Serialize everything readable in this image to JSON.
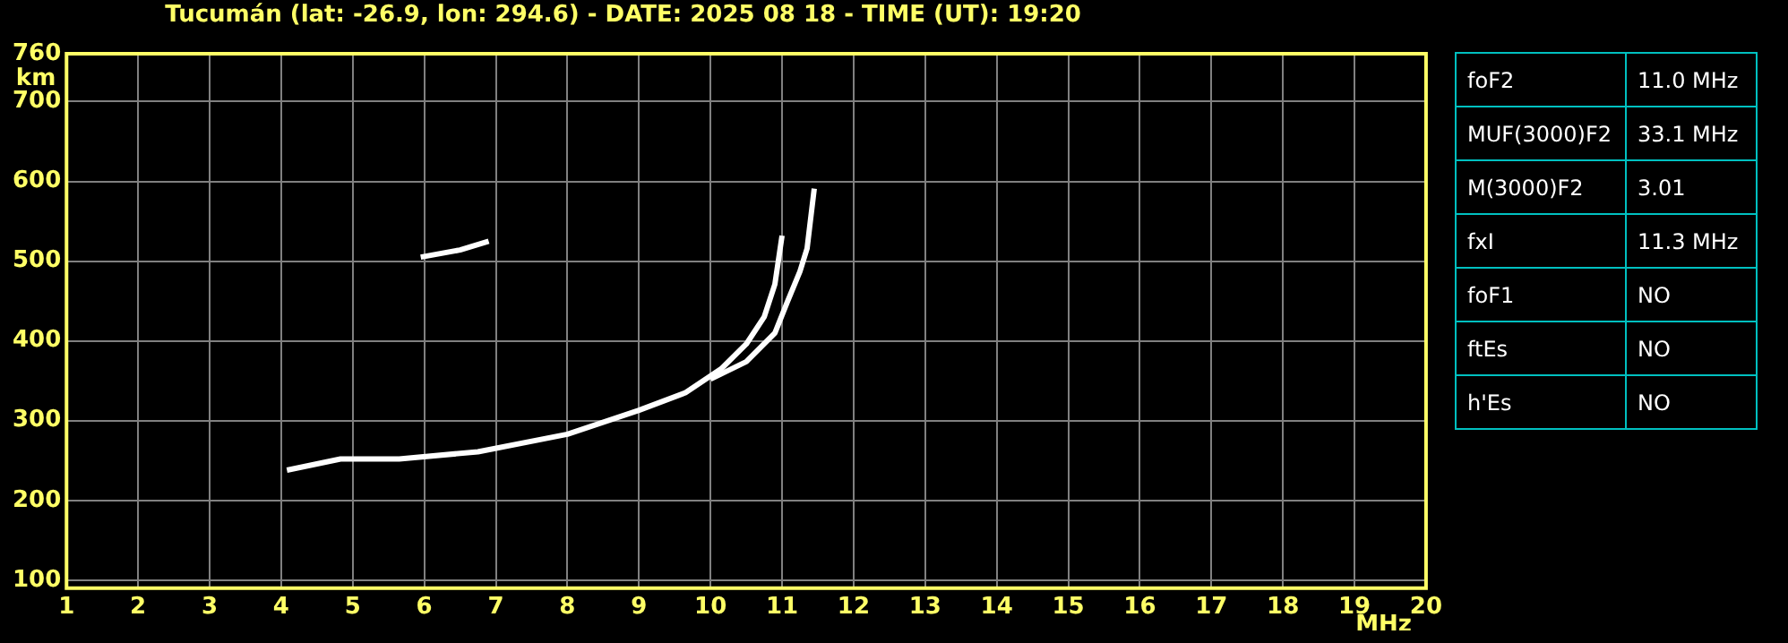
{
  "chart_data": [
    {
      "type": "line",
      "title": "Tucumán (lat: -26.9, lon: 294.6) - DATE: 2025 08 18 - TIME (UT): 19:20",
      "xlabel": "MHz",
      "ylabel": "km",
      "xlim": [
        1,
        20
      ],
      "xticks": [
        1,
        2,
        3,
        4,
        5,
        6,
        7,
        8,
        9,
        10,
        11,
        12,
        13,
        14,
        15,
        16,
        17,
        18,
        19,
        20
      ],
      "ylim": [
        90,
        760
      ],
      "yticks": [
        100,
        200,
        300,
        400,
        500,
        600,
        700,
        760
      ],
      "grid": true,
      "marker": "none",
      "line_style": "solid",
      "series": [
        {
          "color": "#ffffff",
          "x": [
            4.08,
            4.83,
            5.65,
            6.75,
            8.0,
            9.0,
            9.65,
            10.15,
            10.5,
            10.75,
            10.9,
            11.0
          ],
          "values": [
            238,
            252,
            252,
            261,
            283,
            313,
            335,
            365,
            396,
            430,
            471,
            532
          ]
        },
        {
          "color": "#ffffff",
          "x": [
            10.0,
            10.5,
            10.9,
            11.07,
            11.25,
            11.35,
            11.45
          ],
          "values": [
            352,
            374,
            410,
            448,
            487,
            516,
            591
          ]
        },
        {
          "color": "#ffffff",
          "x": [
            5.95,
            6.5,
            6.9
          ],
          "values": [
            505,
            514,
            525
          ]
        }
      ]
    },
    {
      "type": "other",
      "annotations": [
        "foF2",
        "11.0 MHz",
        "MUF(3000)F2",
        "33.1 MHz",
        "M(3000)F2",
        "3.01",
        "fxI",
        "11.3 MHz",
        "foF1",
        "NO",
        "ftEs",
        "NO",
        "h'Es",
        "NO"
      ]
    }
  ]
}
